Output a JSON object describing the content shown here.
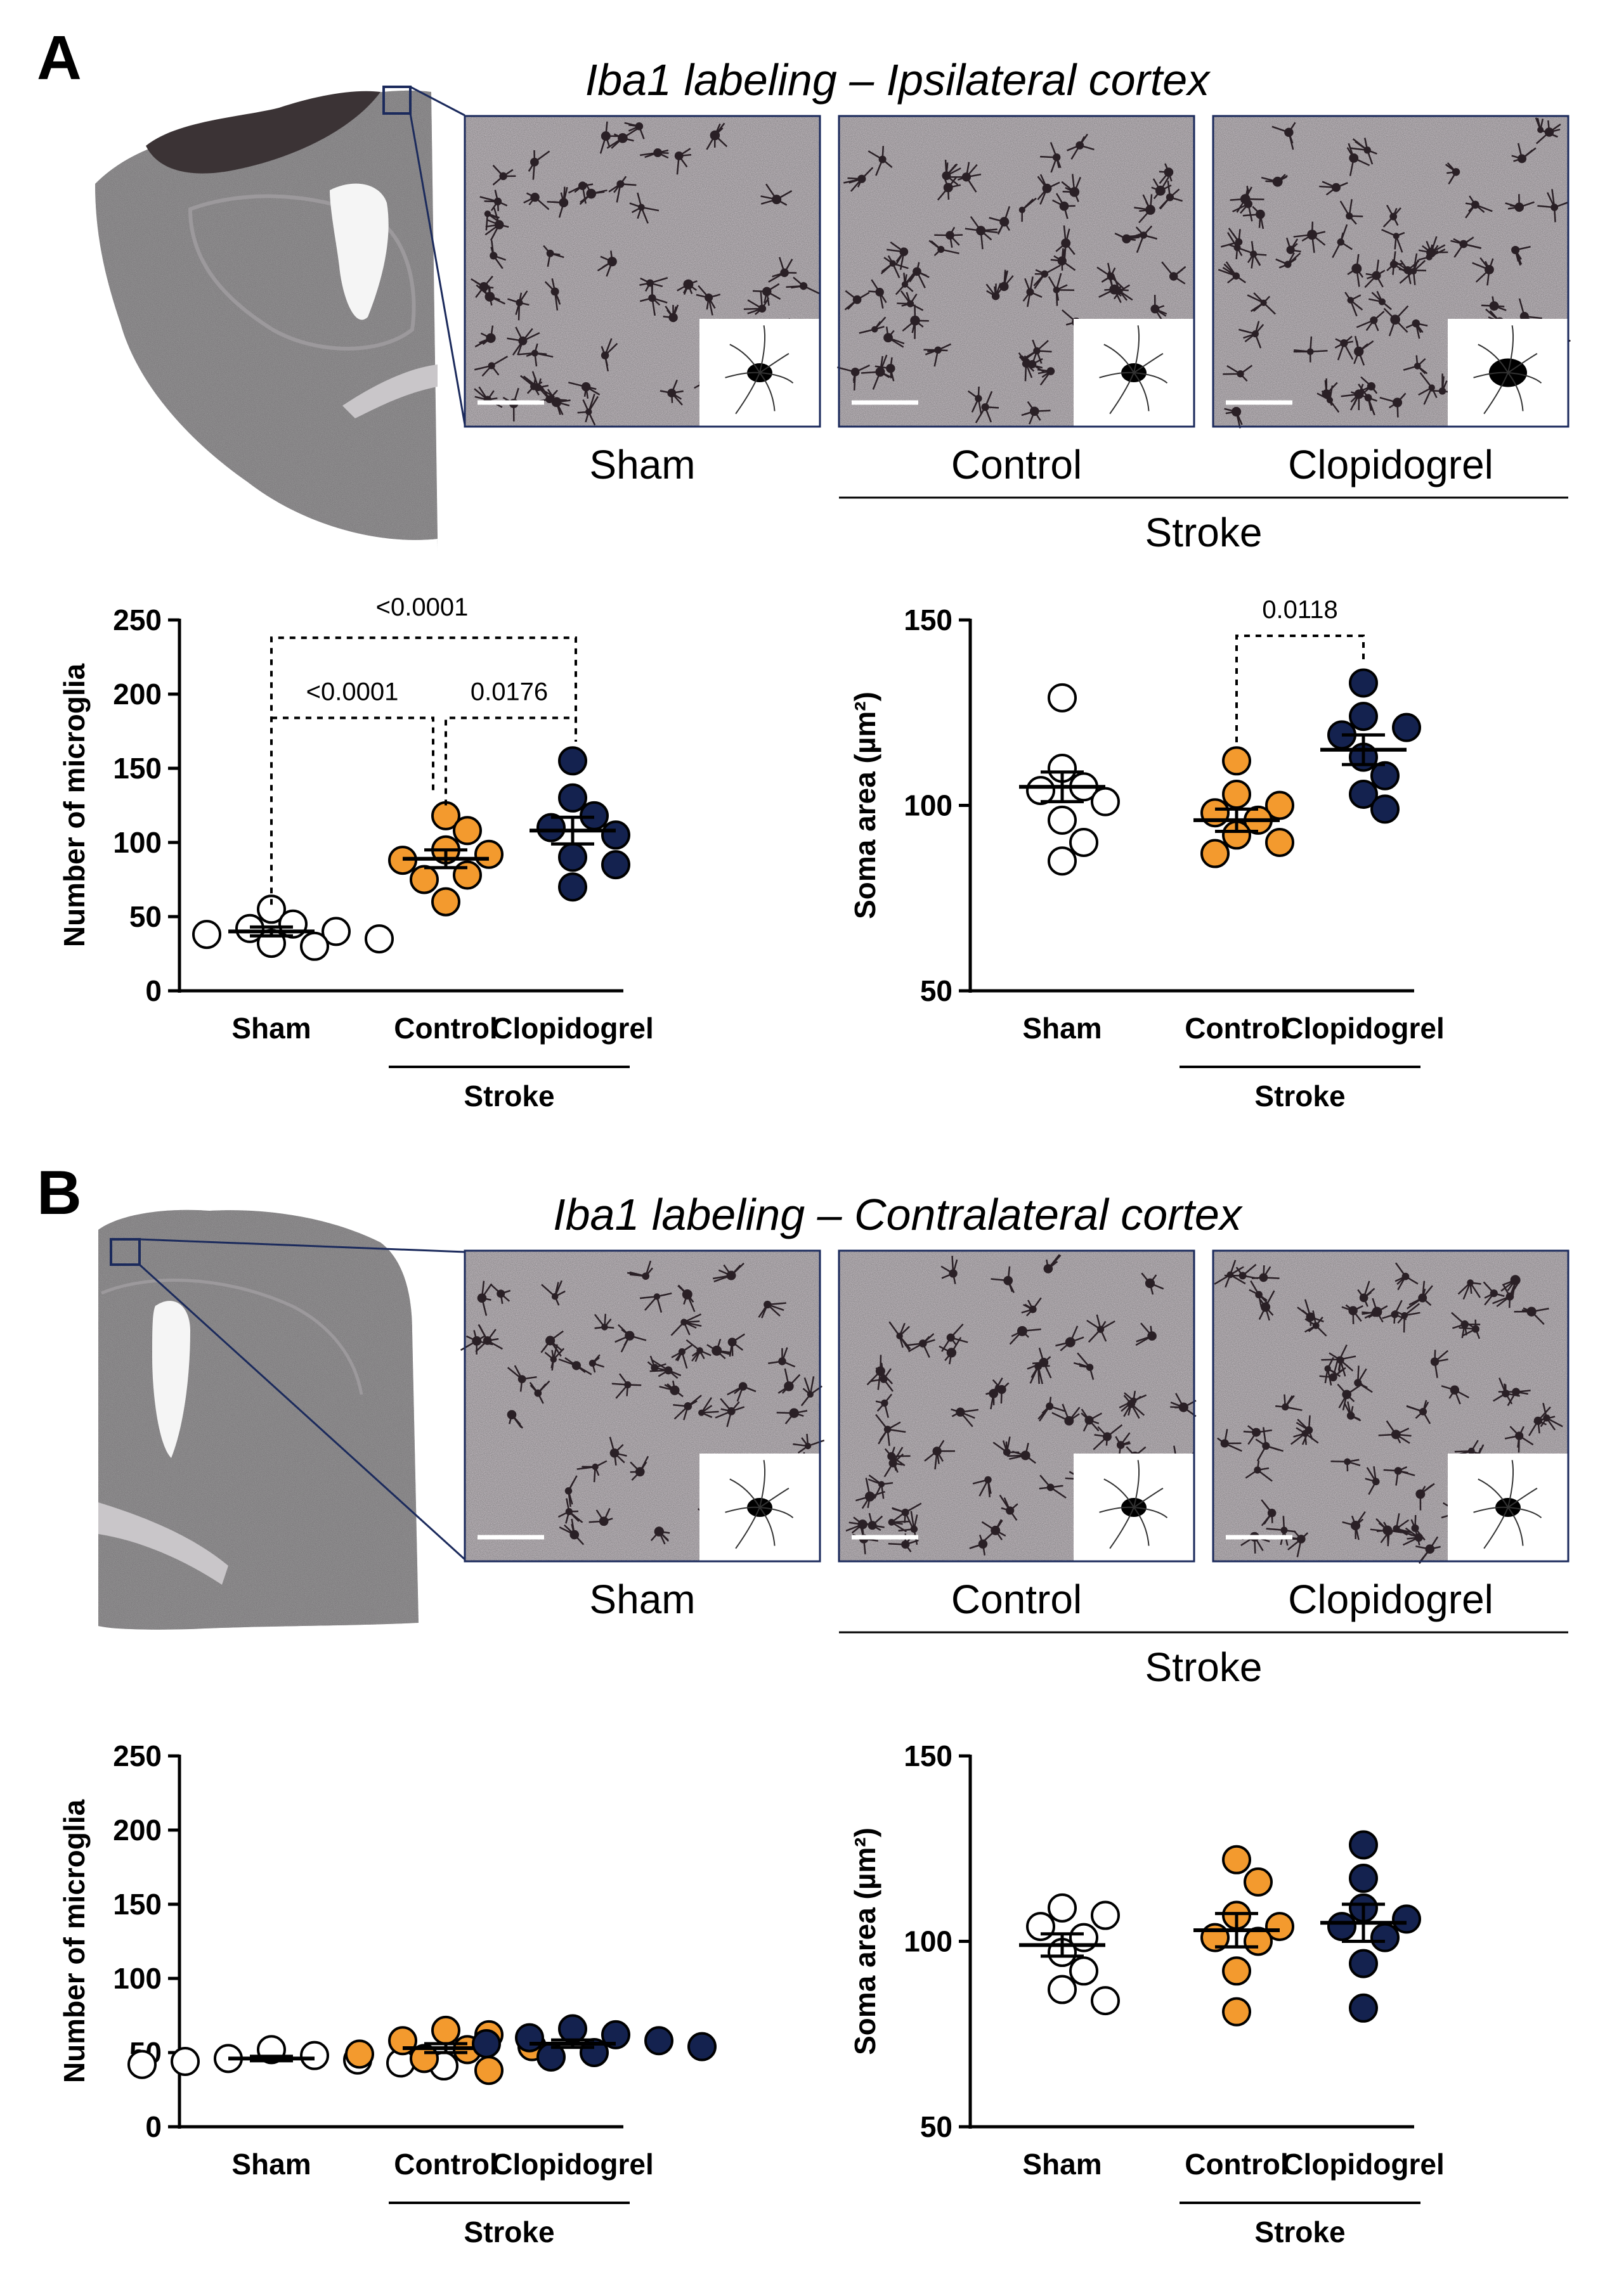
{
  "colors": {
    "sham": "#ffffff",
    "control": "#f39a2e",
    "clopidogrel": "#14224f",
    "frame": "#1b2a5c",
    "text": "#000000"
  },
  "panels": [
    {
      "letter": "A",
      "title": "Iba1 labeling – Ipsilateral cortex",
      "image_labels": [
        "Sham",
        "Control",
        "Clopidogrel"
      ],
      "group_label": "Stroke",
      "has_lesion": true
    },
    {
      "letter": "B",
      "title": "Iba1 labeling – Contralateral cortex",
      "image_labels": [
        "Sham",
        "Control",
        "Clopidogrel"
      ],
      "group_label": "Stroke",
      "has_lesion": false
    }
  ],
  "chart_data": [
    {
      "type": "scatter",
      "panel": "A",
      "ylabel": "Number of microglia",
      "ylim": [
        0,
        250
      ],
      "yticks": [
        0,
        50,
        100,
        150,
        200,
        250
      ],
      "categories": [
        "Sham",
        "Control",
        "Clopidogrel"
      ],
      "group_label": "Stroke",
      "series": [
        {
          "name": "Sham",
          "values": [
            55,
            45,
            42,
            40,
            38,
            35,
            32,
            30
          ],
          "mean": 40,
          "sem": 3
        },
        {
          "name": "Control",
          "values": [
            118,
            108,
            95,
            92,
            88,
            78,
            75,
            60
          ],
          "mean": 89,
          "sem": 6
        },
        {
          "name": "Clopidogrel",
          "values": [
            155,
            130,
            118,
            110,
            105,
            90,
            85,
            70
          ],
          "mean": 108,
          "sem": 9
        }
      ],
      "annotations": [
        {
          "from": 0,
          "to": 2,
          "label": "<0.0001",
          "level": 1
        },
        {
          "from": 0,
          "to": 1,
          "label": "<0.0001",
          "level": 0
        },
        {
          "from": 1,
          "to": 2,
          "label": "0.0176",
          "level": 0
        }
      ]
    },
    {
      "type": "scatter",
      "panel": "A",
      "ylabel": "Soma area (µm²)",
      "ylim": [
        50,
        150
      ],
      "yticks": [
        50,
        100,
        150
      ],
      "categories": [
        "Sham",
        "Control",
        "Clopidogrel"
      ],
      "group_label": "Stroke",
      "series": [
        {
          "name": "Sham",
          "values": [
            129,
            110,
            105,
            104,
            101,
            96,
            90,
            85
          ],
          "mean": 105,
          "sem": 4
        },
        {
          "name": "Control",
          "values": [
            112,
            103,
            100,
            98,
            96,
            92,
            90,
            87
          ],
          "mean": 96,
          "sem": 3
        },
        {
          "name": "Clopidogrel",
          "values": [
            133,
            124,
            121,
            119,
            113,
            108,
            103,
            99
          ],
          "mean": 115,
          "sem": 4
        }
      ],
      "annotations": [
        {
          "from": 1,
          "to": 2,
          "label": "0.0118",
          "level": 0
        }
      ]
    },
    {
      "type": "scatter",
      "panel": "B",
      "ylabel": "Number of microglia",
      "ylim": [
        0,
        250
      ],
      "yticks": [
        0,
        50,
        100,
        150,
        200,
        250
      ],
      "categories": [
        "Sham",
        "Control",
        "Clopidogrel"
      ],
      "group_label": "Stroke",
      "series": [
        {
          "name": "Sham",
          "values": [
            52,
            48,
            46,
            45,
            44,
            43,
            42,
            41
          ],
          "mean": 46,
          "sem": 1.5
        },
        {
          "name": "Control",
          "values": [
            65,
            62,
            58,
            54,
            52,
            49,
            46,
            38
          ],
          "mean": 53,
          "sem": 3
        },
        {
          "name": "Clopidogrel",
          "values": [
            66,
            62,
            60,
            58,
            56,
            54,
            50,
            47
          ],
          "mean": 56,
          "sem": 2.5
        }
      ],
      "annotations": []
    },
    {
      "type": "scatter",
      "panel": "B",
      "ylabel": "Soma area (µm²)",
      "ylim": [
        50,
        150
      ],
      "yticks": [
        50,
        100,
        150
      ],
      "categories": [
        "Sham",
        "Control",
        "Clopidogrel"
      ],
      "group_label": "Stroke",
      "series": [
        {
          "name": "Sham",
          "values": [
            109,
            107,
            104,
            101,
            97,
            92,
            87,
            84
          ],
          "mean": 99,
          "sem": 3
        },
        {
          "name": "Control",
          "values": [
            122,
            116,
            107,
            104,
            101,
            100,
            92,
            81
          ],
          "mean": 103,
          "sem": 4.5
        },
        {
          "name": "Clopidogrel",
          "values": [
            126,
            117,
            109,
            106,
            104,
            101,
            94,
            82
          ],
          "mean": 105,
          "sem": 5
        }
      ],
      "annotations": []
    }
  ]
}
